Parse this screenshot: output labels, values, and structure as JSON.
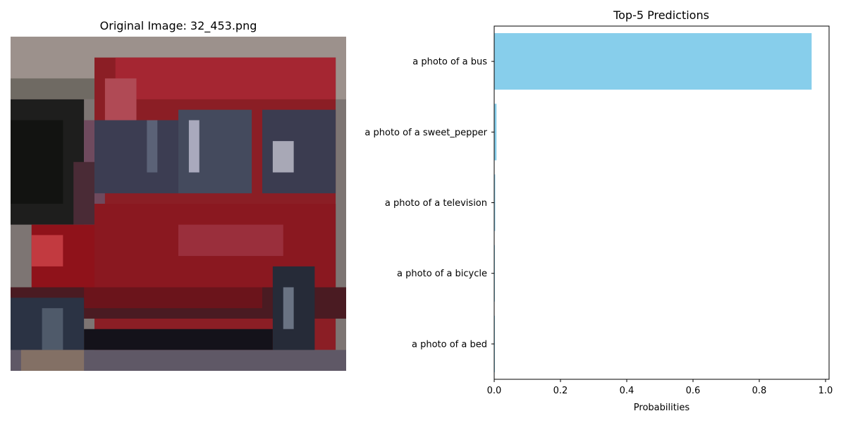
{
  "left_panel": {
    "title": "Original Image: 32_453.png",
    "image_alt": "red bus"
  },
  "chart_data": {
    "type": "bar",
    "orientation": "horizontal",
    "title": "Top-5 Predictions",
    "xlabel": "Probabilities",
    "ylabel": "",
    "categories": [
      "a photo of a bus",
      "a photo of a sweet_pepper",
      "a photo of a television",
      "a photo of a bicycle",
      "a photo of a bed"
    ],
    "values": [
      0.958,
      0.007,
      0.003,
      0.002,
      0.002
    ],
    "xlim": [
      0,
      1.0
    ],
    "xticks": [
      "0.0",
      "0.2",
      "0.4",
      "0.6",
      "0.8",
      "1.0"
    ],
    "bar_color": "#87CEEB",
    "grid": false,
    "legend": "none"
  }
}
